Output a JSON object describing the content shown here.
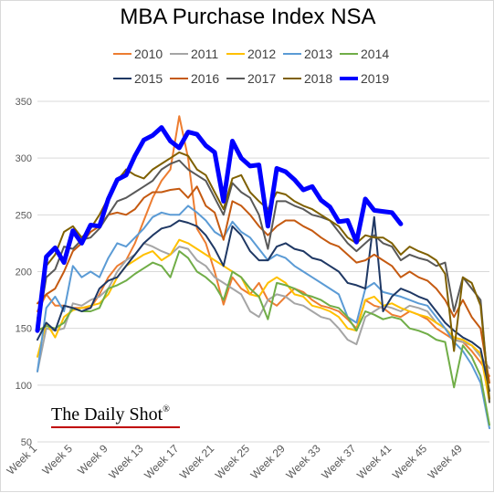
{
  "brand": {
    "text": "The Daily Shot",
    "reg": "®",
    "accent": "#c00000"
  },
  "chart_data": {
    "type": "line",
    "title": "MBA Purchase Index NSA",
    "xlabel": "",
    "ylabel": "",
    "ylim": [
      50,
      350
    ],
    "yticks": [
      50,
      100,
      150,
      200,
      250,
      300,
      350
    ],
    "xlim": [
      1,
      52
    ],
    "xticks": [
      "Week 1",
      "Week 5",
      "Week 9",
      "Week 13",
      "Week 17",
      "Week 21",
      "Week 25",
      "Week 29",
      "Week 33",
      "Week 37",
      "Week 41",
      "Week 45",
      "Week 49"
    ],
    "xtick_weeks": [
      1,
      5,
      9,
      13,
      17,
      21,
      25,
      29,
      33,
      37,
      41,
      45,
      49
    ],
    "grid": "horizontal",
    "legend_position": "top",
    "series": [
      {
        "name": "2010",
        "color": "#ed7d31",
        "width": 2,
        "values": [
          165,
          180,
          170,
          170,
          168,
          168,
          168,
          180,
          195,
          205,
          210,
          225,
          245,
          265,
          280,
          290,
          337,
          300,
          238,
          225,
          200,
          171,
          195,
          185,
          180,
          190,
          175,
          170,
          178,
          185,
          182,
          175,
          170,
          168,
          165,
          158,
          150,
          175,
          170,
          168,
          162,
          160,
          165,
          162,
          158,
          150,
          145,
          140,
          138,
          130,
          120,
          108
        ]
      },
      {
        "name": "2011",
        "color": "#a5a5a5",
        "width": 2,
        "values": [
          112,
          150,
          148,
          150,
          172,
          170,
          175,
          178,
          185,
          200,
          210,
          215,
          225,
          222,
          218,
          215,
          222,
          220,
          210,
          205,
          195,
          190,
          185,
          180,
          165,
          160,
          175,
          180,
          178,
          172,
          170,
          165,
          160,
          158,
          150,
          140,
          136,
          160,
          165,
          170,
          168,
          165,
          170,
          168,
          165,
          155,
          150,
          140,
          138,
          135,
          125,
          115
        ]
      },
      {
        "name": "2012",
        "color": "#ffc000",
        "width": 2,
        "values": [
          125,
          155,
          142,
          160,
          166,
          168,
          170,
          172,
          180,
          195,
          205,
          210,
          215,
          218,
          210,
          215,
          228,
          225,
          220,
          215,
          210,
          205,
          200,
          195,
          180,
          178,
          190,
          195,
          190,
          180,
          178,
          170,
          168,
          165,
          160,
          150,
          148,
          175,
          178,
          170,
          172,
          168,
          165,
          162,
          160,
          155,
          150,
          142,
          140,
          135,
          128,
          85
        ]
      },
      {
        "name": "2013",
        "color": "#5b9bd5",
        "width": 2,
        "values": [
          112,
          168,
          178,
          165,
          205,
          195,
          200,
          195,
          212,
          225,
          222,
          230,
          238,
          248,
          252,
          250,
          250,
          258,
          252,
          245,
          235,
          230,
          244,
          235,
          230,
          220,
          210,
          215,
          212,
          205,
          200,
          195,
          190,
          185,
          180,
          160,
          155,
          185,
          190,
          182,
          180,
          178,
          175,
          172,
          170,
          160,
          150,
          138,
          130,
          118,
          102,
          62
        ]
      },
      {
        "name": "2014",
        "color": "#70ad47",
        "width": 2,
        "values": [
          148,
          152,
          150,
          155,
          168,
          165,
          165,
          168,
          185,
          188,
          192,
          198,
          203,
          208,
          205,
          195,
          218,
          212,
          200,
          195,
          188,
          175,
          200,
          195,
          185,
          178,
          158,
          190,
          188,
          185,
          180,
          178,
          175,
          170,
          168,
          160,
          148,
          165,
          162,
          158,
          160,
          158,
          150,
          148,
          145,
          140,
          138,
          98,
          135,
          125,
          108,
          65
        ]
      },
      {
        "name": "2015",
        "color": "#1f3864",
        "width": 2,
        "values": [
          140,
          155,
          148,
          170,
          168,
          165,
          168,
          185,
          192,
          195,
          205,
          215,
          225,
          232,
          238,
          240,
          245,
          243,
          240,
          232,
          220,
          205,
          240,
          232,
          218,
          210,
          210,
          222,
          225,
          220,
          218,
          212,
          210,
          205,
          200,
          190,
          188,
          185,
          248,
          165,
          178,
          185,
          182,
          178,
          175,
          165,
          155,
          148,
          142,
          138,
          132,
          95
        ]
      },
      {
        "name": "2016",
        "color": "#c55a11",
        "width": 2,
        "values": [
          172,
          180,
          185,
          200,
          218,
          225,
          235,
          240,
          250,
          252,
          250,
          255,
          265,
          270,
          270,
          272,
          273,
          265,
          275,
          258,
          252,
          228,
          262,
          258,
          250,
          240,
          232,
          240,
          245,
          245,
          240,
          236,
          230,
          225,
          222,
          215,
          208,
          210,
          215,
          210,
          205,
          195,
          200,
          195,
          192,
          185,
          175,
          160,
          175,
          160,
          150,
          102
        ]
      },
      {
        "name": "2017",
        "color": "#595959",
        "width": 2,
        "values": [
          148,
          195,
          202,
          222,
          220,
          228,
          230,
          238,
          250,
          262,
          265,
          270,
          275,
          280,
          290,
          295,
          298,
          290,
          285,
          280,
          265,
          250,
          278,
          270,
          265,
          250,
          220,
          262,
          262,
          258,
          255,
          250,
          248,
          245,
          235,
          225,
          218,
          225,
          232,
          225,
          222,
          210,
          215,
          212,
          210,
          205,
          208,
          165,
          195,
          185,
          175,
          85
        ]
      },
      {
        "name": "2018",
        "color": "#7f6000",
        "width": 2,
        "values": [
          158,
          205,
          215,
          235,
          240,
          230,
          238,
          250,
          265,
          280,
          290,
          285,
          282,
          290,
          295,
          300,
          305,
          302,
          290,
          285,
          270,
          255,
          282,
          285,
          270,
          262,
          255,
          270,
          268,
          262,
          258,
          255,
          250,
          245,
          240,
          230,
          225,
          232,
          230,
          230,
          225,
          215,
          222,
          218,
          215,
          210,
          198,
          130,
          195,
          190,
          170,
          88
        ]
      },
      {
        "name": "2019",
        "color": "#0000ff",
        "width": 5,
        "values": [
          148,
          213,
          221,
          208,
          236,
          225,
          241,
          240,
          264,
          281,
          285,
          302,
          316,
          320,
          327,
          315,
          309,
          323,
          321,
          311,
          305,
          262,
          315,
          300,
          293,
          294,
          240,
          291,
          288,
          281,
          272,
          275,
          263,
          257,
          244,
          245,
          226,
          264,
          254,
          253,
          252,
          242
        ]
      }
    ]
  }
}
